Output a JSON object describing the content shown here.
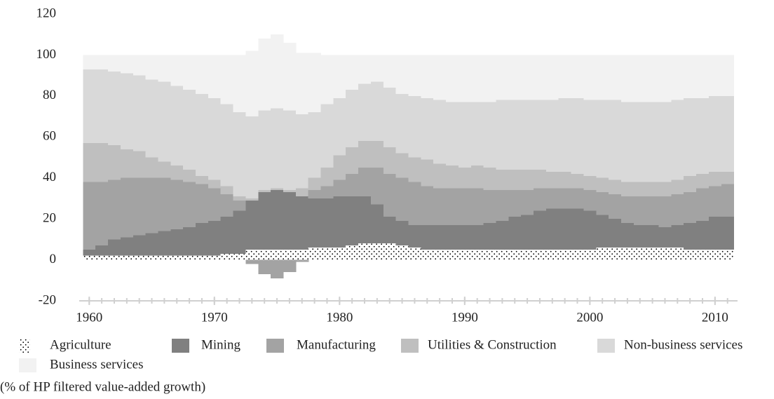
{
  "chart_data": {
    "type": "stacked-step-area",
    "note": "(% of HP filtered value-added growth)",
    "x": [
      1960,
      1961,
      1962,
      1963,
      1964,
      1965,
      1966,
      1967,
      1968,
      1969,
      1970,
      1971,
      1972,
      1973,
      1974,
      1975,
      1976,
      1977,
      1978,
      1979,
      1980,
      1981,
      1982,
      1983,
      1984,
      1985,
      1986,
      1987,
      1988,
      1989,
      1990,
      1991,
      1992,
      1993,
      1994,
      1995,
      1996,
      1997,
      1998,
      1999,
      2000,
      2001,
      2002,
      2003,
      2004,
      2005,
      2006,
      2007,
      2008,
      2009,
      2010,
      2011
    ],
    "xlim": [
      1959.2,
      2011.8
    ],
    "xticks": [
      1960,
      1970,
      1980,
      1990,
      2000,
      2010
    ],
    "ylim": [
      -20,
      120
    ],
    "yticks": [
      -20,
      0,
      20,
      40,
      60,
      80,
      100,
      120
    ],
    "grid": false,
    "series": [
      {
        "name": "Agriculture",
        "color": "#000000",
        "pattern": "dots",
        "values": [
          2,
          2,
          2,
          2,
          2,
          2,
          2,
          2,
          2,
          2,
          2,
          3,
          3,
          5,
          5,
          5,
          5,
          5,
          6,
          6,
          6,
          7,
          8,
          8,
          8,
          7,
          6,
          5,
          5,
          5,
          5,
          5,
          5,
          5,
          5,
          5,
          5,
          5,
          5,
          5,
          5,
          6,
          6,
          6,
          6,
          6,
          6,
          6,
          5,
          5,
          5,
          5
        ]
      },
      {
        "name": "Mining",
        "color": "#808080",
        "values": [
          3,
          5,
          8,
          9,
          10,
          11,
          12,
          13,
          14,
          16,
          17,
          18,
          21,
          24,
          28,
          29,
          28,
          26,
          24,
          24,
          25,
          24,
          23,
          19,
          13,
          12,
          11,
          12,
          12,
          12,
          12,
          12,
          13,
          14,
          16,
          17,
          19,
          20,
          20,
          20,
          19,
          16,
          14,
          12,
          11,
          11,
          10,
          11,
          13,
          14,
          16,
          16
        ]
      },
      {
        "name": "Manufacturing",
        "color": "#a3a3a3",
        "values": [
          33,
          31,
          29,
          29,
          28,
          27,
          26,
          24,
          22,
          19,
          16,
          11,
          5,
          -2,
          -7,
          -9,
          -6,
          -1,
          4,
          6,
          8,
          11,
          14,
          18,
          21,
          21,
          21,
          19,
          18,
          18,
          18,
          18,
          16,
          15,
          13,
          12,
          11,
          10,
          10,
          10,
          10,
          11,
          12,
          13,
          14,
          14,
          15,
          15,
          15,
          16,
          15,
          16
        ]
      },
      {
        "name": "Utilities & Construction",
        "color": "#bfbfbf",
        "values": [
          19,
          19,
          17,
          14,
          13,
          10,
          8,
          7,
          6,
          4,
          4,
          4,
          2,
          1,
          1,
          1,
          1,
          4,
          6,
          9,
          12,
          13,
          13,
          13,
          13,
          12,
          12,
          13,
          12,
          11,
          10,
          11,
          11,
          10,
          10,
          10,
          9,
          8,
          8,
          7,
          7,
          7,
          7,
          7,
          7,
          7,
          7,
          7,
          8,
          7,
          7,
          6
        ]
      },
      {
        "name": "Non-business services",
        "color": "#d9d9d9",
        "values": [
          36,
          36,
          36,
          37,
          37,
          38,
          39,
          39,
          39,
          40,
          40,
          40,
          41,
          40,
          39,
          39,
          39,
          36,
          32,
          31,
          28,
          28,
          28,
          29,
          29,
          29,
          30,
          30,
          31,
          31,
          32,
          31,
          32,
          34,
          34,
          34,
          34,
          35,
          36,
          37,
          37,
          38,
          39,
          39,
          39,
          39,
          39,
          39,
          38,
          37,
          37,
          37
        ]
      },
      {
        "name": "Business services",
        "color": "#f2f2f2",
        "values": [
          7,
          7,
          8,
          9,
          10,
          12,
          13,
          15,
          17,
          19,
          21,
          24,
          28,
          32,
          35,
          36,
          33,
          30,
          29,
          24,
          21,
          17,
          14,
          13,
          16,
          19,
          20,
          21,
          22,
          23,
          23,
          23,
          23,
          22,
          22,
          22,
          22,
          22,
          21,
          21,
          22,
          22,
          22,
          23,
          23,
          23,
          23,
          22,
          21,
          21,
          20,
          20
        ]
      }
    ]
  }
}
